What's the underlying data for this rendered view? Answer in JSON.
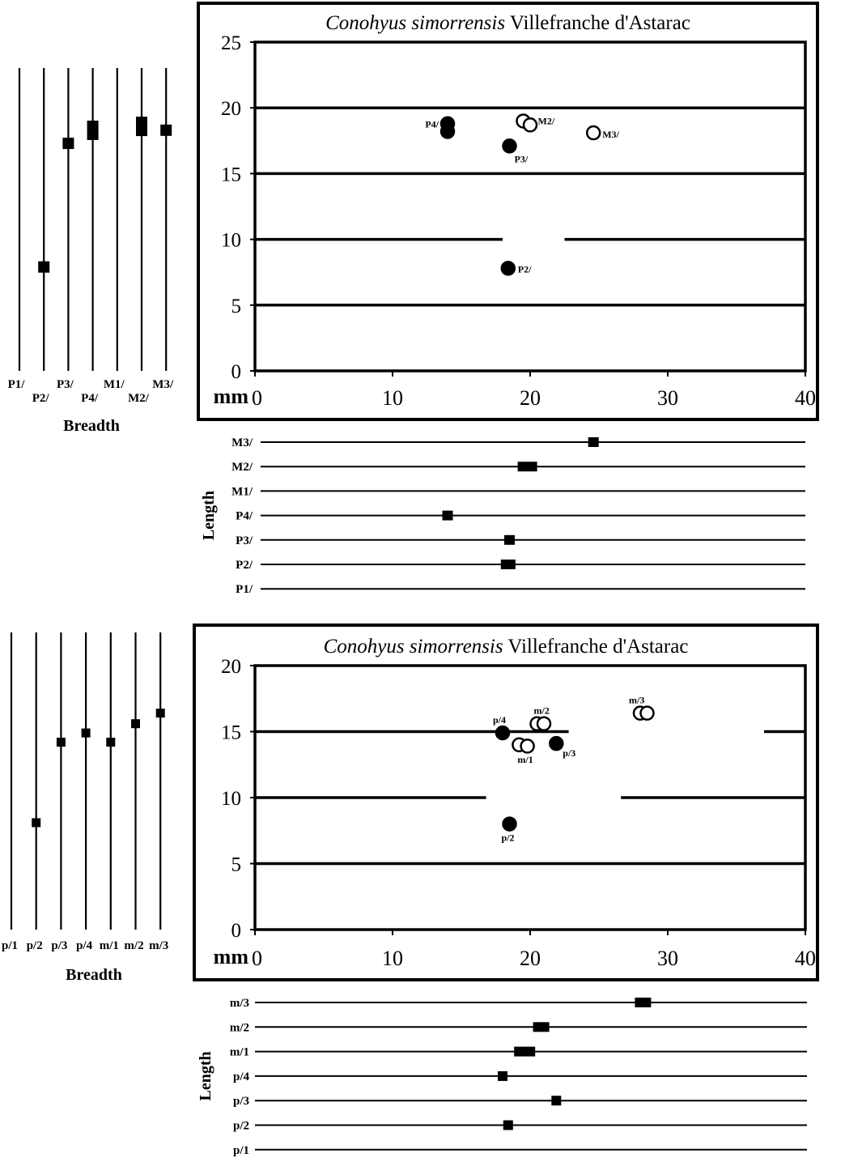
{
  "colors": {
    "ink": "#000000",
    "paper": "#ffffff"
  },
  "chart_data": [
    {
      "type": "scatter",
      "title_italic": "Conohyus simorrensis",
      "title_rest": " Villefranche d'Astarac",
      "xlabel": "mm",
      "xlim": [
        0,
        40
      ],
      "ylim": [
        0,
        25
      ],
      "xticks": [
        "0",
        "10",
        "20",
        "30",
        "40"
      ],
      "yticks": [
        "0",
        "5",
        "10",
        "15",
        "20",
        "25"
      ],
      "points": [
        {
          "label": "P4/",
          "x": 14.0,
          "y": 18.8,
          "style": "filled"
        },
        {
          "label": "",
          "x": 14.0,
          "y": 18.2,
          "style": "filled"
        },
        {
          "label": "P3/",
          "x": 18.5,
          "y": 17.1,
          "style": "filled"
        },
        {
          "label": "P2/",
          "x": 18.4,
          "y": 7.8,
          "style": "filled"
        },
        {
          "label": "M2/",
          "x": 19.5,
          "y": 19.0,
          "style": "open"
        },
        {
          "label": "",
          "x": 20.0,
          "y": 18.7,
          "style": "open"
        },
        {
          "label": "M3/",
          "x": 24.6,
          "y": 18.1,
          "style": "open"
        }
      ],
      "breadth": {
        "label": "Breadth",
        "ylim": [
          0,
          25
        ],
        "columns": [
          {
            "label": "P1/",
            "value": null
          },
          {
            "label": "P2/",
            "value": 7.9
          },
          {
            "label": "P3/",
            "value": 17.3
          },
          {
            "label": "P4/",
            "value": 18.6
          },
          {
            "label": "M1/",
            "value": null
          },
          {
            "label": "M2/",
            "value": 18.9
          },
          {
            "label": "M3/",
            "value": 18.3
          }
        ]
      },
      "length": {
        "label": "Length",
        "xlim": [
          0,
          40
        ],
        "rows": [
          {
            "label": "M3/",
            "value": 24.6
          },
          {
            "label": "M2/",
            "value": 19.8
          },
          {
            "label": "M1/",
            "value": null
          },
          {
            "label": "P4/",
            "value": 14.0
          },
          {
            "label": "P3/",
            "value": 18.5
          },
          {
            "label": "P2/",
            "value": 18.4
          },
          {
            "label": "P1/",
            "value": null
          }
        ]
      }
    },
    {
      "type": "scatter",
      "title_italic": "Conohyus simorrensis",
      "title_rest": " Villefranche d'Astarac",
      "xlabel": "mm",
      "xlim": [
        0,
        40
      ],
      "ylim": [
        0,
        20
      ],
      "xticks": [
        "0",
        "10",
        "20",
        "30",
        "40"
      ],
      "yticks": [
        "0",
        "5",
        "10",
        "15",
        "20"
      ],
      "points": [
        {
          "label": "p/4",
          "x": 18.0,
          "y": 14.9,
          "style": "filled"
        },
        {
          "label": "p/3",
          "x": 21.9,
          "y": 14.1,
          "style": "filled"
        },
        {
          "label": "p/2",
          "x": 18.5,
          "y": 8.0,
          "style": "filled"
        },
        {
          "label": "m/1",
          "x": 19.2,
          "y": 14.0,
          "style": "open"
        },
        {
          "label": "",
          "x": 19.8,
          "y": 13.9,
          "style": "open"
        },
        {
          "label": "m/2",
          "x": 20.5,
          "y": 15.6,
          "style": "open"
        },
        {
          "label": "",
          "x": 21.0,
          "y": 15.6,
          "style": "open"
        },
        {
          "label": "m/3",
          "x": 28.0,
          "y": 16.4,
          "style": "open"
        },
        {
          "label": "",
          "x": 28.5,
          "y": 16.4,
          "style": "open"
        }
      ],
      "breadth": {
        "label": "Breadth",
        "ylim": [
          0,
          20
        ],
        "columns": [
          {
            "label": "p/1",
            "value": null
          },
          {
            "label": "p/2",
            "value": 8.1
          },
          {
            "label": "p/3",
            "value": 14.2
          },
          {
            "label": "p/4",
            "value": 14.9
          },
          {
            "label": "m/1",
            "value": 14.2
          },
          {
            "label": "m/2",
            "value": 15.6
          },
          {
            "label": "m/3",
            "value": 16.4
          }
        ]
      },
      "length": {
        "label": "Length",
        "xlim": [
          0,
          40
        ],
        "rows": [
          {
            "label": "m/3",
            "value": 28.2
          },
          {
            "label": "m/2",
            "value": 20.8
          },
          {
            "label": "m/1",
            "value": 19.6
          },
          {
            "label": "p/4",
            "value": 18.0
          },
          {
            "label": "p/3",
            "value": 21.9
          },
          {
            "label": "p/2",
            "value": 18.4
          },
          {
            "label": "p/1",
            "value": null
          }
        ]
      }
    }
  ]
}
